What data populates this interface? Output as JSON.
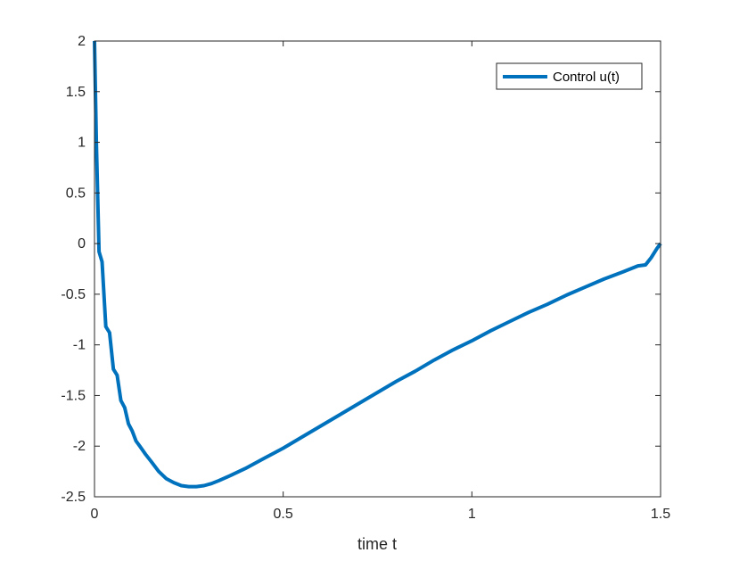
{
  "chart_data": {
    "type": "line",
    "title": "",
    "xlabel": "time t",
    "ylabel": "",
    "xlim": [
      0,
      1.5
    ],
    "ylim": [
      -2.5,
      2
    ],
    "xticks": [
      0,
      0.5,
      1,
      1.5
    ],
    "xtick_labels": [
      "0",
      "0.5",
      "1",
      "1.5"
    ],
    "yticks": [
      -2.5,
      -2,
      -1.5,
      -1,
      -0.5,
      0,
      0.5,
      1,
      1.5,
      2
    ],
    "ytick_labels": [
      "-2.5",
      "-2",
      "-1.5",
      "-1",
      "-0.5",
      "0",
      "0.5",
      "1",
      "1.5",
      "2"
    ],
    "grid": false,
    "box": true,
    "legend_position": "top-right",
    "series": [
      {
        "name": "Control u(t)",
        "color": "#0072BD",
        "x": [
          0,
          0.005,
          0.012,
          0.02,
          0.03,
          0.04,
          0.05,
          0.06,
          0.07,
          0.08,
          0.09,
          0.1,
          0.11,
          0.12,
          0.135,
          0.15,
          0.17,
          0.19,
          0.21,
          0.23,
          0.25,
          0.27,
          0.29,
          0.31,
          0.33,
          0.36,
          0.4,
          0.45,
          0.5,
          0.55,
          0.6,
          0.65,
          0.7,
          0.75,
          0.8,
          0.85,
          0.9,
          0.95,
          1.0,
          1.05,
          1.1,
          1.15,
          1.2,
          1.25,
          1.3,
          1.35,
          1.4,
          1.44,
          1.46,
          1.475,
          1.49,
          1.5
        ],
        "values": [
          2.0,
          1.0,
          -0.08,
          -0.18,
          -0.82,
          -0.88,
          -1.24,
          -1.3,
          -1.55,
          -1.62,
          -1.78,
          -1.85,
          -1.95,
          -2.0,
          -2.08,
          -2.15,
          -2.25,
          -2.32,
          -2.36,
          -2.39,
          -2.4,
          -2.4,
          -2.39,
          -2.37,
          -2.34,
          -2.29,
          -2.22,
          -2.12,
          -2.02,
          -1.91,
          -1.8,
          -1.69,
          -1.58,
          -1.47,
          -1.36,
          -1.26,
          -1.15,
          -1.05,
          -0.96,
          -0.86,
          -0.77,
          -0.68,
          -0.6,
          -0.51,
          -0.43,
          -0.35,
          -0.28,
          -0.22,
          -0.21,
          -0.14,
          -0.05,
          0.0
        ]
      }
    ]
  }
}
